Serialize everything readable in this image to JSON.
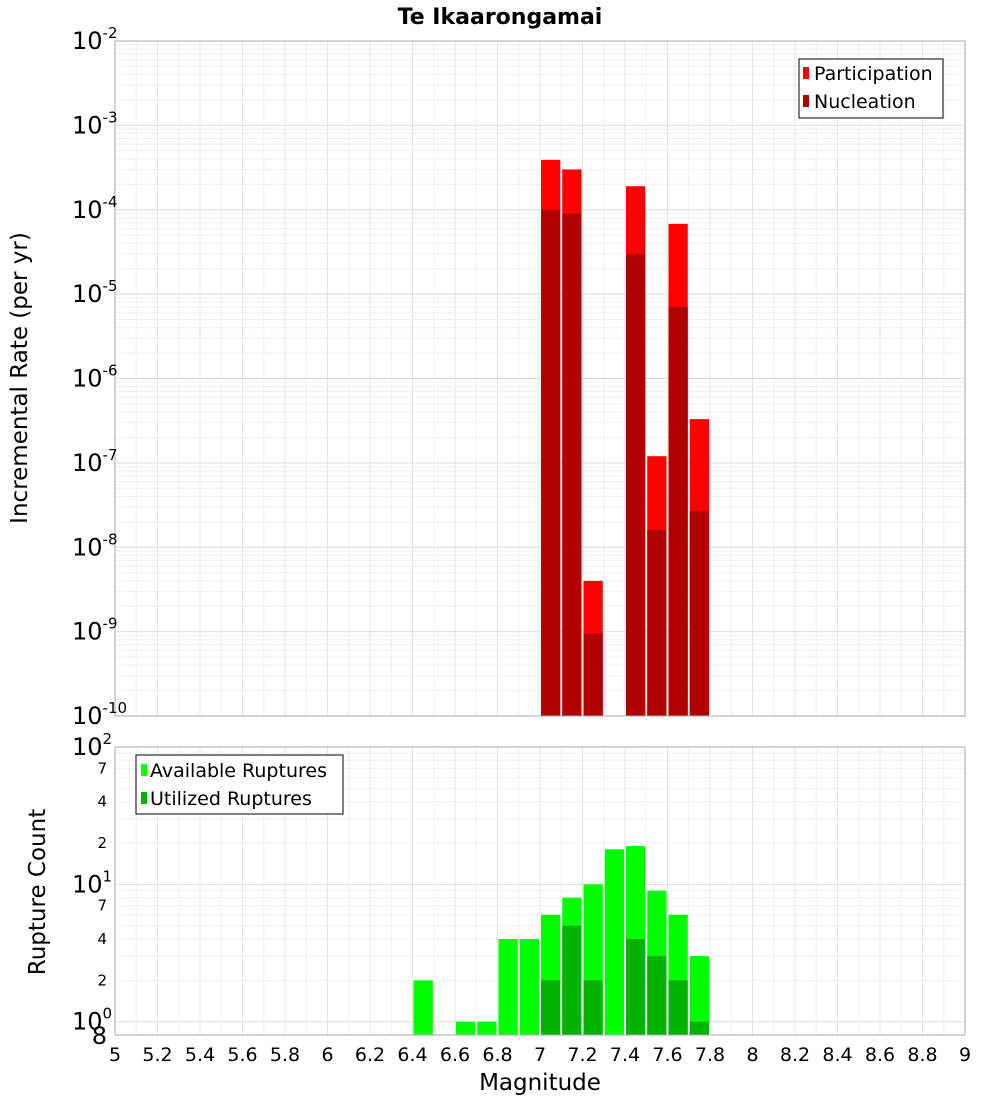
{
  "title": "Te Ikaarongamai",
  "colors": {
    "participation": "#ff0000",
    "nucleation": "#b20000",
    "available": "#00ff00",
    "utilized": "#00b300"
  },
  "chart_data": [
    {
      "type": "bar",
      "ylabel": "Incremental Rate (per yr)",
      "yscale": "log",
      "ylim": [
        1e-10,
        0.01
      ],
      "y_tick_labels": [
        {
          "base": "10",
          "exp": "-10"
        },
        {
          "base": "10",
          "exp": "-9"
        },
        {
          "base": "10",
          "exp": "-8"
        },
        {
          "base": "10",
          "exp": "-7"
        },
        {
          "base": "10",
          "exp": "-6"
        },
        {
          "base": "10",
          "exp": "-5"
        },
        {
          "base": "10",
          "exp": "-4"
        },
        {
          "base": "10",
          "exp": "-3"
        },
        {
          "base": "10",
          "exp": "-2"
        }
      ],
      "xlim": [
        5,
        9
      ],
      "bin_width": 0.1,
      "grid": true,
      "legend_position": "top-right",
      "series": [
        {
          "name": "Participation",
          "x": [
            7.05,
            7.15,
            7.25,
            7.45,
            7.55,
            7.65,
            7.75
          ],
          "values": [
            0.00039,
            0.0003,
            4e-09,
            0.00019,
            1.2e-07,
            6.8e-05,
            3.3e-07
          ]
        },
        {
          "name": "Nucleation",
          "x": [
            7.05,
            7.15,
            7.25,
            7.45,
            7.55,
            7.65,
            7.75
          ],
          "values": [
            0.0001,
            9e-05,
            9.5e-10,
            3e-05,
            1.6e-08,
            7e-06,
            2.7e-08
          ]
        }
      ]
    },
    {
      "type": "bar",
      "xlabel": "Magnitude",
      "ylabel": "Rupture Count",
      "yscale": "log",
      "ylim": [
        0.8,
        100
      ],
      "y_tick_labels": [
        {
          "base": "10",
          "exp": "0",
          "value": 1
        },
        {
          "base": "10",
          "exp": "1",
          "value": 10
        },
        {
          "base": "10",
          "exp": "2",
          "value": 100
        }
      ],
      "y_minor_tick_labels": [
        {
          "label": "8",
          "value": 0.8
        },
        {
          "label": "2",
          "value": 2
        },
        {
          "label": "4",
          "value": 4
        },
        {
          "label": "7",
          "value": 7
        },
        {
          "label": "2",
          "value": 20
        },
        {
          "label": "4",
          "value": 40
        },
        {
          "label": "7",
          "value": 70
        }
      ],
      "x_tick_labels": [
        "5",
        "5.2",
        "5.4",
        "5.6",
        "5.8",
        "6",
        "6.2",
        "6.4",
        "6.6",
        "6.8",
        "7",
        "7.2",
        "7.4",
        "7.6",
        "7.8",
        "8",
        "8.2",
        "8.4",
        "8.6",
        "8.8",
        "9"
      ],
      "xlim": [
        5,
        9
      ],
      "bin_width": 0.1,
      "grid": true,
      "legend_position": "top-left",
      "series": [
        {
          "name": "Available Ruptures",
          "x": [
            6.45,
            6.65,
            6.75,
            6.85,
            6.95,
            7.05,
            7.15,
            7.25,
            7.35,
            7.45,
            7.55,
            7.65,
            7.75
          ],
          "values": [
            2,
            1,
            1,
            4,
            4,
            6,
            8,
            10,
            18,
            19,
            9,
            6,
            3
          ]
        },
        {
          "name": "Utilized Ruptures",
          "x": [
            7.05,
            7.15,
            7.25,
            7.45,
            7.55,
            7.65,
            7.75
          ],
          "values": [
            2,
            5,
            2,
            4,
            3,
            2,
            1
          ]
        }
      ]
    }
  ]
}
